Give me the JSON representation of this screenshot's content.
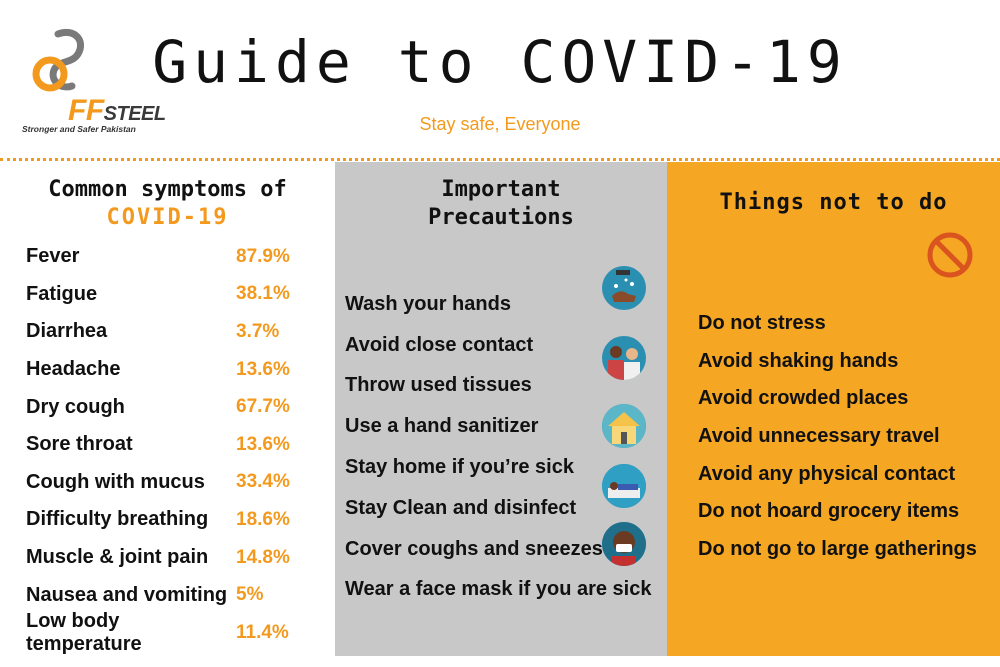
{
  "header": {
    "logo_brand_ff": "FF",
    "logo_brand_rest": "STEEL",
    "logo_tagline": "Stronger and Safer Pakistan",
    "title": "Guide to COVID-19",
    "subtitle": "Stay safe, Everyone"
  },
  "symptoms": {
    "heading_line1": "Common symptoms of",
    "heading_line2": "COVID-19",
    "items": [
      {
        "name": "Fever",
        "value": "87.9%"
      },
      {
        "name": "Fatigue",
        "value": "38.1%"
      },
      {
        "name": "Diarrhea",
        "value": "3.7%"
      },
      {
        "name": "Headache",
        "value": "13.6%"
      },
      {
        "name": "Dry cough",
        "value": "67.7%"
      },
      {
        "name": "Sore throat",
        "value": "13.6%"
      },
      {
        "name": "Cough with mucus",
        "value": "33.4%"
      },
      {
        "name": "Difficulty breathing",
        "value": "18.6%"
      },
      {
        "name": "Muscle & joint pain",
        "value": "14.8%"
      },
      {
        "name": "Nausea and vomiting",
        "value": "5%"
      },
      {
        "name": "Low body temperature",
        "value": "11.4%"
      }
    ]
  },
  "precautions": {
    "heading_line1": "Important",
    "heading_line2": "Precautions",
    "items": [
      "Wash your hands",
      "Avoid close contact",
      "Throw used tissues",
      "Use a hand sanitizer",
      "Stay home if you’re sick",
      "Stay Clean and disinfect",
      "Cover coughs and sneezes",
      "Wear a face mask if you are sick"
    ],
    "icons": [
      "hand-washing-icon",
      "close-contact-icon",
      "home-icon",
      "sick-in-bed-icon",
      "face-mask-icon"
    ]
  },
  "donts": {
    "heading": "Things not to do",
    "icon": "prohibited-icon",
    "items": [
      "Do not stress",
      "Avoid shaking hands",
      "Avoid crowded places",
      "Avoid unnecessary travel",
      "Avoid any physical contact",
      "Do not hoard grocery items",
      "Do not go to large gatherings"
    ]
  },
  "colors": {
    "accent": "#f39a1e",
    "middle_panel": "#c8c8c8",
    "right_panel": "#f5a623"
  }
}
